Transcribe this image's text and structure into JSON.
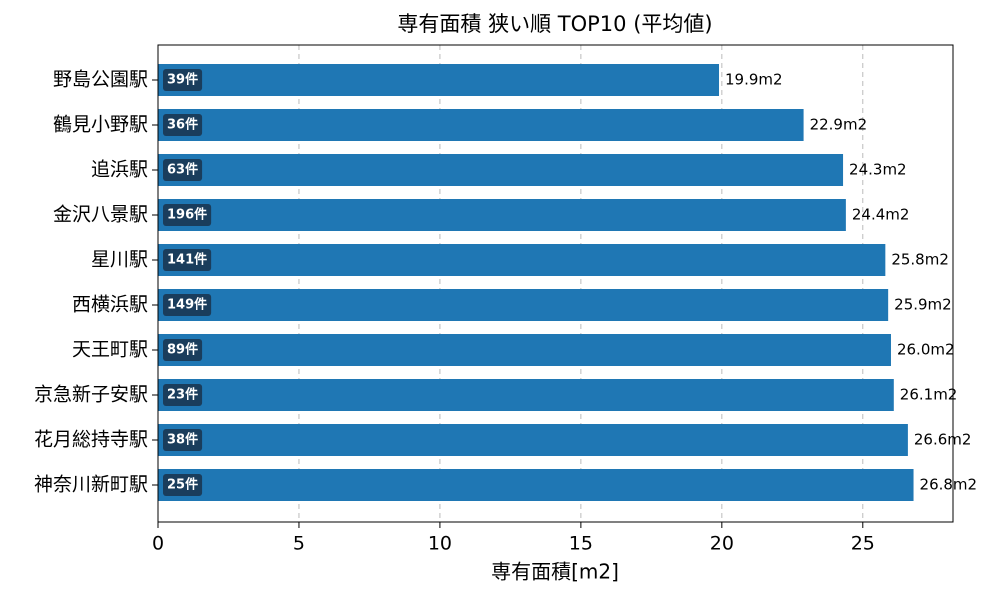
{
  "chart_data": {
    "type": "barh",
    "title": "専有面積 狭い順 TOP10 (平均値)",
    "xlabel": "専有面積[m2]",
    "categories": [
      "野島公園駅",
      "鶴見小野駅",
      "追浜駅",
      "金沢八景駅",
      "星川駅",
      "西横浜駅",
      "天王町駅",
      "京急新子安駅",
      "花月総持寺駅",
      "神奈川新町駅"
    ],
    "values": [
      19.9,
      22.9,
      24.3,
      24.4,
      25.8,
      25.9,
      26.0,
      26.1,
      26.6,
      26.8
    ],
    "value_labels": [
      "19.9m2",
      "22.9m2",
      "24.3m2",
      "24.4m2",
      "25.8m2",
      "25.9m2",
      "26.0m2",
      "26.1m2",
      "26.6m2",
      "26.8m2"
    ],
    "count_labels": [
      "39件",
      "36件",
      "63件",
      "196件",
      "141件",
      "149件",
      "89件",
      "23件",
      "38件",
      "25件"
    ],
    "color": "#1f77b4",
    "badge_color": "#1a3d5c",
    "xlim": [
      0,
      28.2
    ],
    "xticks": [
      0,
      5,
      10,
      15,
      20,
      25
    ],
    "grid": true
  }
}
